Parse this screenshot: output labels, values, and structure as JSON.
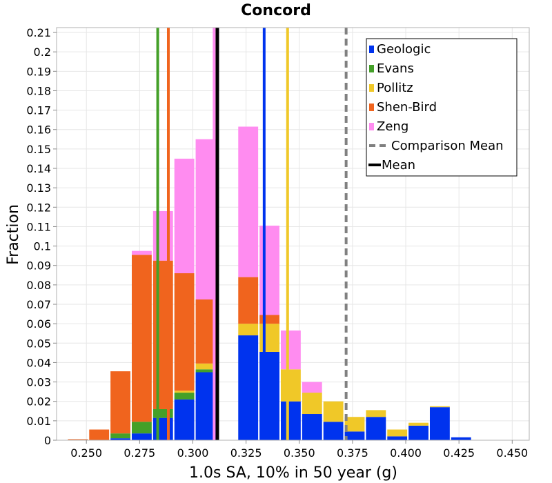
{
  "chart_data": {
    "type": "bar",
    "stacked": true,
    "title": "Concord",
    "xlabel": "1.0s SA, 10% in 50 year (g)",
    "ylabel": "Fraction",
    "xlim": [
      0.236,
      0.458
    ],
    "ylim": [
      0,
      0.2125
    ],
    "x_ticks": [
      "0.250",
      "0.275",
      "0.300",
      "0.325",
      "0.350",
      "0.375",
      "0.400",
      "0.425",
      "0.450"
    ],
    "y_ticks": [
      "0",
      "0.01",
      "0.02",
      "0.03",
      "0.04",
      "0.05",
      "0.06",
      "0.07",
      "0.08",
      "0.09",
      "0.1",
      "0.11",
      "0.12",
      "0.13",
      "0.14",
      "0.15",
      "0.16",
      "0.17",
      "0.18",
      "0.19",
      "0.2",
      "0.21"
    ],
    "bin_width": 0.01,
    "bin_centers": [
      0.25,
      0.26,
      0.27,
      0.28,
      0.29,
      0.3,
      0.31,
      0.32,
      0.33,
      0.34,
      0.35,
      0.36,
      0.37,
      0.38,
      0.39,
      0.4,
      0.41,
      0.42,
      0.43,
      0.44,
      0.45
    ],
    "bin_starts": [
      0.241,
      0.251,
      0.261,
      0.271,
      0.281,
      0.291,
      0.301,
      0.311,
      0.321,
      0.331,
      0.341,
      0.351,
      0.361,
      0.371,
      0.381,
      0.391,
      0.401,
      0.411,
      0.421,
      0.431,
      0.441
    ],
    "series": [
      {
        "name": "Geologic",
        "color": "#0033ee",
        "values": [
          0,
          0,
          0.001,
          0.0035,
          0.0115,
          0.021,
          0.035,
          0.0,
          0.054,
          0.0455,
          0.02,
          0.0135,
          0.0095,
          0.0045,
          0.012,
          0.002,
          0.0075,
          0.017,
          0.0015,
          0,
          0
        ]
      },
      {
        "name": "Evans",
        "color": "#44a028",
        "values": [
          0,
          0,
          0.0025,
          0.006,
          0.0045,
          0.0035,
          0.0015,
          0,
          0,
          0,
          0,
          0,
          0,
          0,
          0,
          0,
          0,
          0,
          0,
          0,
          0
        ]
      },
      {
        "name": "Pollitz",
        "color": "#f0c828",
        "values": [
          0,
          0,
          0,
          0,
          0,
          0.001,
          0.003,
          0,
          0.006,
          0.0145,
          0.0165,
          0.011,
          0.0105,
          0.0075,
          0.0035,
          0.0035,
          0.0015,
          0.0005,
          0,
          0,
          0
        ]
      },
      {
        "name": "Shen-Bird",
        "color": "#f0641e",
        "values": [
          0.0005,
          0.0055,
          0.032,
          0.086,
          0.0765,
          0.0605,
          0.033,
          0,
          0.024,
          0.0045,
          0,
          0,
          0,
          0,
          0,
          0,
          0,
          0,
          0,
          0,
          0
        ]
      },
      {
        "name": "Zeng",
        "color": "#ff8cf0",
        "values": [
          0,
          0,
          0,
          0.002,
          0.0255,
          0.059,
          0.0825,
          0,
          0.0775,
          0.046,
          0.02,
          0.0055,
          0,
          0,
          0,
          0,
          0,
          0,
          0,
          0,
          0
        ]
      }
    ],
    "reference_lines": [
      {
        "name": "Evans",
        "x": 0.2835,
        "color": "#44a028",
        "style": "solid"
      },
      {
        "name": "Shen-Bird",
        "x": 0.2885,
        "color": "#f0641e",
        "style": "solid"
      },
      {
        "name": "Zeng",
        "x": 0.31,
        "color": "#ff8cf0",
        "style": "solid"
      },
      {
        "name": "Mean",
        "x": 0.3115,
        "color": "#000000",
        "style": "solid"
      },
      {
        "name": "Geologic",
        "x": 0.3335,
        "color": "#0033ee",
        "style": "solid"
      },
      {
        "name": "Pollitz",
        "x": 0.3445,
        "color": "#f0c828",
        "style": "solid"
      },
      {
        "name": "Comparison Mean",
        "x": 0.372,
        "color": "#808080",
        "style": "dashed"
      }
    ],
    "legend": {
      "placement": "top-right",
      "items": [
        {
          "label": "Geologic",
          "color": "#0033ee",
          "kind": "box"
        },
        {
          "label": "Evans",
          "color": "#44a028",
          "kind": "box"
        },
        {
          "label": "Pollitz",
          "color": "#f0c828",
          "kind": "box"
        },
        {
          "label": "Shen-Bird",
          "color": "#f0641e",
          "kind": "box"
        },
        {
          "label": "Zeng",
          "color": "#ff8cf0",
          "kind": "box"
        },
        {
          "label": "Comparison Mean",
          "color": "#808080",
          "kind": "dashed-line"
        },
        {
          "label": "Mean",
          "color": "#000000",
          "kind": "line"
        }
      ]
    }
  }
}
